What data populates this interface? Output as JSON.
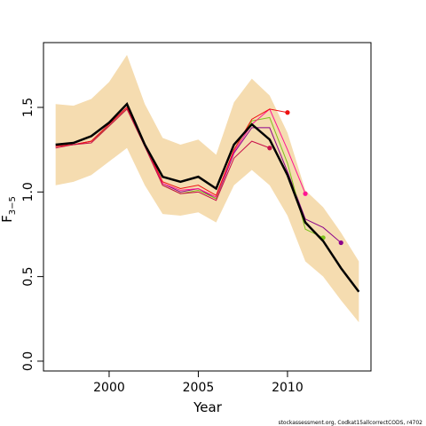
{
  "chart_data": {
    "type": "line",
    "xlabel": "Year",
    "ylabel": "F",
    "ylabel_subscript": "3−5",
    "footnote": "stockassessment.org, Codkat15allcorrectCODS, r4702",
    "x": [
      1997,
      1998,
      1999,
      2000,
      2001,
      2002,
      2003,
      2004,
      2005,
      2006,
      2007,
      2008,
      2009,
      2010,
      2011,
      2012,
      2013,
      2014
    ],
    "xlim": [
      1996.32,
      2014.68
    ],
    "xticks": [
      2000,
      2005,
      2010
    ],
    "ylim": [
      -0.058,
      1.883
    ],
    "yticks": [
      {
        "value": 0,
        "label": "0.0"
      },
      {
        "value": 0.5,
        "label": "0.5"
      },
      {
        "value": 1,
        "label": "1.0"
      },
      {
        "value": 1.5,
        "label": "1.5"
      }
    ],
    "band": {
      "color": "#f5dcb0",
      "upper": [
        1.52,
        1.51,
        1.55,
        1.65,
        1.81,
        1.52,
        1.32,
        1.28,
        1.31,
        1.22,
        1.53,
        1.67,
        1.57,
        1.35,
        1.01,
        0.91,
        0.76,
        0.59
      ],
      "lower": [
        1.04,
        1.06,
        1.1,
        1.18,
        1.26,
        1.04,
        0.87,
        0.86,
        0.88,
        0.82,
        1.04,
        1.13,
        1.04,
        0.86,
        0.59,
        0.5,
        0.36,
        0.23
      ]
    },
    "end_points": true,
    "series": [
      {
        "color": "#8b008b",
        "values": [
          1.27,
          1.28,
          1.3,
          1.4,
          1.5,
          1.27,
          1.05,
          1.0,
          1.02,
          0.96,
          1.23,
          1.38,
          1.38,
          1.12,
          0.84,
          0.79,
          0.7,
          null
        ]
      },
      {
        "color": "#7fc31c",
        "values": [
          1.27,
          1.28,
          1.3,
          1.39,
          1.49,
          1.27,
          1.04,
          0.99,
          1.01,
          0.96,
          1.25,
          1.42,
          1.44,
          1.17,
          0.78,
          0.73,
          null,
          null
        ]
      },
      {
        "color": "#ff1493",
        "values": [
          1.27,
          1.28,
          1.3,
          1.4,
          1.5,
          1.27,
          1.05,
          1.01,
          1.02,
          0.97,
          1.24,
          1.4,
          1.49,
          1.25,
          0.99,
          null,
          null,
          null
        ]
      },
      {
        "color": "#ee1111",
        "values": [
          1.27,
          1.28,
          1.3,
          1.4,
          1.5,
          1.28,
          1.06,
          1.02,
          1.04,
          0.98,
          1.25,
          1.43,
          1.49,
          1.47,
          null,
          null,
          null,
          null
        ]
      },
      {
        "color": "#c8104a",
        "values": [
          1.26,
          1.28,
          1.29,
          1.39,
          1.49,
          1.27,
          1.04,
          0.99,
          1.0,
          0.95,
          1.2,
          1.3,
          1.26,
          null,
          null,
          null,
          null,
          null
        ]
      },
      {
        "color": "#000000",
        "main": true,
        "values": [
          1.28,
          1.29,
          1.33,
          1.41,
          1.52,
          1.28,
          1.09,
          1.06,
          1.09,
          1.02,
          1.28,
          1.4,
          1.31,
          1.1,
          0.82,
          0.71,
          0.55,
          0.41
        ]
      }
    ]
  }
}
